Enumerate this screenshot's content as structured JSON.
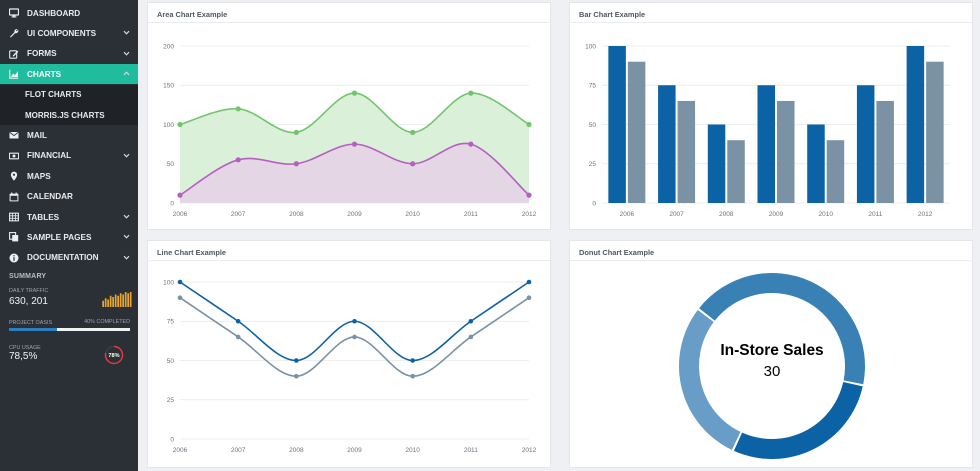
{
  "sidebar": {
    "items": [
      {
        "label": "DASHBOARD",
        "icon": "monitor-icon",
        "has_chevron": false
      },
      {
        "label": "UI COMPONENTS",
        "icon": "wrench-icon",
        "has_chevron": true
      },
      {
        "label": "FORMS",
        "icon": "edit-icon",
        "has_chevron": true
      },
      {
        "label": "CHARTS",
        "icon": "area-chart-icon",
        "has_chevron": true,
        "active": true
      },
      {
        "label": "MAIL",
        "icon": "envelope-icon",
        "has_chevron": false
      },
      {
        "label": "FINANCIAL",
        "icon": "money-icon",
        "has_chevron": true
      },
      {
        "label": "MAPS",
        "icon": "map-marker-icon",
        "has_chevron": false
      },
      {
        "label": "CALENDAR",
        "icon": "calendar-icon",
        "has_chevron": false
      },
      {
        "label": "TABLES",
        "icon": "table-icon",
        "has_chevron": true
      },
      {
        "label": "SAMPLE PAGES",
        "icon": "copy-icon",
        "has_chevron": true
      },
      {
        "label": "DOCUMENTATION",
        "icon": "info-circle-icon",
        "has_chevron": true
      }
    ],
    "sub_items": [
      {
        "label": "FLOT CHARTS"
      },
      {
        "label": "MORRIS.JS CHARTS"
      }
    ],
    "summary": {
      "title": "SUMMARY",
      "daily_traffic_label": "DAILY TRAFFIC",
      "daily_traffic_value": "630, 201",
      "traffic_bars": [
        5,
        7,
        6,
        9,
        8,
        10,
        9,
        11,
        10,
        12,
        11,
        12
      ],
      "project_label": "PROJECT OASIS",
      "project_progress_label": "40% COMPLETED",
      "project_progress": 0.4,
      "cpu_label": "CPU USAGE",
      "cpu_value": "78,5%",
      "cpu_gauge_label": "78%",
      "cpu_fraction": 0.785
    }
  },
  "colors": {
    "sidebar_bg": "#2b2f36",
    "accent": "#1fbd9e",
    "area_a": "#72c56d",
    "area_b": "#b55fc2",
    "bar_a": "#0b62a4",
    "bar_b": "#7a92a3",
    "traffic": "#e8a72a",
    "gauge": "#e0393c"
  },
  "panels": {
    "area": {
      "title": "Area Chart Example"
    },
    "bar": {
      "title": "Bar Chart Example"
    },
    "line": {
      "title": "Line Chart Example"
    },
    "donut": {
      "title": "Donut Chart Example"
    }
  },
  "chart_data": [
    {
      "type": "area",
      "title": "Area Chart Example",
      "x": [
        "2006",
        "2007",
        "2008",
        "2009",
        "2010",
        "2011",
        "2012"
      ],
      "series": [
        {
          "values": [
            100,
            120,
            90,
            140,
            90,
            140,
            100
          ]
        },
        {
          "values": [
            10,
            55,
            50,
            75,
            50,
            75,
            10
          ]
        }
      ],
      "ylim": [
        0,
        200
      ],
      "yticks": [
        0,
        50,
        100,
        150,
        200
      ],
      "grid": true
    },
    {
      "type": "bar",
      "title": "Bar Chart Example",
      "categories": [
        "2006",
        "2007",
        "2008",
        "2009",
        "2010",
        "2011",
        "2012"
      ],
      "series": [
        {
          "values": [
            100,
            75,
            50,
            75,
            50,
            75,
            100
          ]
        },
        {
          "values": [
            90,
            65,
            40,
            65,
            40,
            65,
            90
          ]
        }
      ],
      "ylim": [
        0,
        100
      ],
      "yticks": [
        0,
        25,
        50,
        75,
        100
      ],
      "grid": true
    },
    {
      "type": "line",
      "title": "Line Chart Example",
      "x": [
        "2006",
        "2007",
        "2008",
        "2009",
        "2010",
        "2011",
        "2012"
      ],
      "series": [
        {
          "values": [
            100,
            75,
            50,
            75,
            50,
            75,
            100
          ]
        },
        {
          "values": [
            90,
            65,
            40,
            65,
            40,
            65,
            90
          ]
        }
      ],
      "ylim": [
        0,
        100
      ],
      "yticks": [
        0,
        25,
        50,
        75,
        100
      ],
      "grid": true
    },
    {
      "type": "pie",
      "title": "Donut Chart Example",
      "center_label": "In-Store Sales",
      "center_value": "30",
      "slices": [
        {
          "value": 20,
          "color": "#0b62a4"
        },
        {
          "value": 30,
          "color": "#3980b5"
        },
        {
          "value": 20,
          "color": "#679dc6"
        }
      ]
    }
  ]
}
